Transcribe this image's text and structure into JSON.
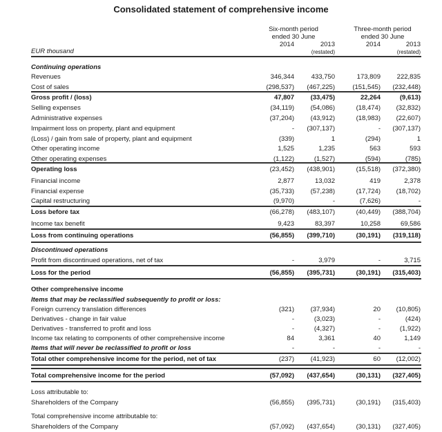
{
  "title": "Consolidated statement of comprehensive income",
  "header": {
    "unit": "EUR thousand",
    "periods": [
      {
        "line1": "Six-month period",
        "line2": "ended 30 June",
        "years": [
          "2014",
          "2013"
        ],
        "note": "(restated)"
      },
      {
        "line1": "Three-month period",
        "line2": "ended 30 June",
        "years": [
          "2014",
          "2013"
        ],
        "note": "(restated)"
      }
    ]
  },
  "rows": [
    {
      "label": "Continuing operations",
      "style": "italic-heading",
      "values": []
    },
    {
      "label": "Revenues",
      "values": [
        "346,344",
        "433,750",
        "173,809",
        "222,835"
      ]
    },
    {
      "label": "Cost of sales",
      "values": [
        "(298,537)",
        "(467,225)",
        "(151,545)",
        "(232,448)"
      ]
    },
    {
      "label": "Gross profit / (loss)",
      "style": "bold",
      "values": [
        "47,807",
        "(33,475)",
        "22,264",
        "(9,613)"
      ]
    },
    {
      "label": "Selling expenses",
      "values": [
        "(34,119)",
        "(54,086)",
        "(18,474)",
        "(32,832)"
      ]
    },
    {
      "label": "Administrative expenses",
      "values": [
        "(37,204)",
        "(43,912)",
        "(18,983)",
        "(22,607)"
      ]
    },
    {
      "label": "Impairment loss on property, plant and equipment",
      "values": [
        "-",
        "(307,137)",
        "-",
        "(307,137)"
      ]
    },
    {
      "label": "(Loss) / gain from sale of property, plant and equipment",
      "values": [
        "(339)",
        "1",
        "(294)",
        "1"
      ]
    },
    {
      "label": "Other operating income",
      "values": [
        "1,525",
        "1,235",
        "563",
        "593"
      ]
    },
    {
      "label": "Other operating expenses",
      "values": [
        "(1,122)",
        "(1,527)",
        "(594)",
        "(785)"
      ]
    },
    {
      "label": "Operating loss",
      "style": "bold-label",
      "values": [
        "(23,452)",
        "(438,901)",
        "(15,518)",
        "(372,380)"
      ]
    },
    {
      "label": "Financial income",
      "values": [
        "2,877",
        "13,032",
        "419",
        "2,378"
      ]
    },
    {
      "label": "Financial expense",
      "values": [
        "(35,733)",
        "(57,238)",
        "(17,724)",
        "(18,702)"
      ]
    },
    {
      "label": "Capital restructuring",
      "values": [
        "(9,970)",
        "-",
        "(7,626)",
        "-"
      ]
    },
    {
      "label": "Loss before tax",
      "style": "bold-label",
      "values": [
        "(66,278)",
        "(483,107)",
        "(40,449)",
        "(388,704)"
      ]
    },
    {
      "label": "Income tax benefit",
      "values": [
        "9,423",
        "83,397",
        "10,258",
        "69,586"
      ]
    },
    {
      "label": "Loss from continuing operations",
      "style": "bold",
      "values": [
        "(56,855)",
        "(399,710)",
        "(30,191)",
        "(319,118)"
      ]
    },
    {
      "label": "Discontinued operations",
      "style": "italic-heading",
      "values": []
    },
    {
      "label": "Profit from discontinued operations, net of tax",
      "values": [
        "-",
        "3,979",
        "-",
        "3,715"
      ]
    },
    {
      "label": "Loss for the period",
      "style": "bold",
      "values": [
        "(56,855)",
        "(395,731)",
        "(30,191)",
        "(315,403)"
      ]
    },
    {
      "label": "Other comprehensive income",
      "style": "bold",
      "values": []
    },
    {
      "label": "Items that may be reclassified subsequently to profit or loss:",
      "style": "italic-heading",
      "values": []
    },
    {
      "label": "Foreign currency translation differences",
      "values": [
        "(321)",
        "(37,934)",
        "20",
        "(10,805)"
      ]
    },
    {
      "label": "Derivatives - change in fair value",
      "values": [
        "-",
        "(3,023)",
        "-",
        "(424)"
      ]
    },
    {
      "label": "Derivatives - transferred to profit and loss",
      "values": [
        "-",
        "(4,327)",
        "-",
        "(1,922)"
      ]
    },
    {
      "label": "Income tax relating to components of other comprehensive income",
      "values": [
        "84",
        "3,361",
        "40",
        "1,149"
      ]
    },
    {
      "label": "Items that will never be reclassified to profit or loss",
      "style": "italic-heading",
      "values": [
        "-",
        "-",
        "-",
        "-"
      ]
    },
    {
      "label": "Total other comprehensive income for the period, net of tax",
      "style": "bold-label",
      "values": [
        "(237)",
        "(41,923)",
        "60",
        "(12,002)"
      ]
    },
    {
      "label": "Total comprehensive income for the period",
      "style": "bold",
      "values": [
        "(57,092)",
        "(437,654)",
        "(30,131)",
        "(327,405)"
      ]
    },
    {
      "label": "Loss attributable to:",
      "values": []
    },
    {
      "label": "Shareholders of the Company",
      "values": [
        "(56,855)",
        "(395,731)",
        "(30,191)",
        "(315,403)"
      ]
    },
    {
      "label": "Total comprehensive income attributable to:",
      "values": []
    },
    {
      "label": "Shareholders of the Company",
      "values": [
        "(57,092)",
        "(437,654)",
        "(30,131)",
        "(327,405)"
      ]
    }
  ]
}
